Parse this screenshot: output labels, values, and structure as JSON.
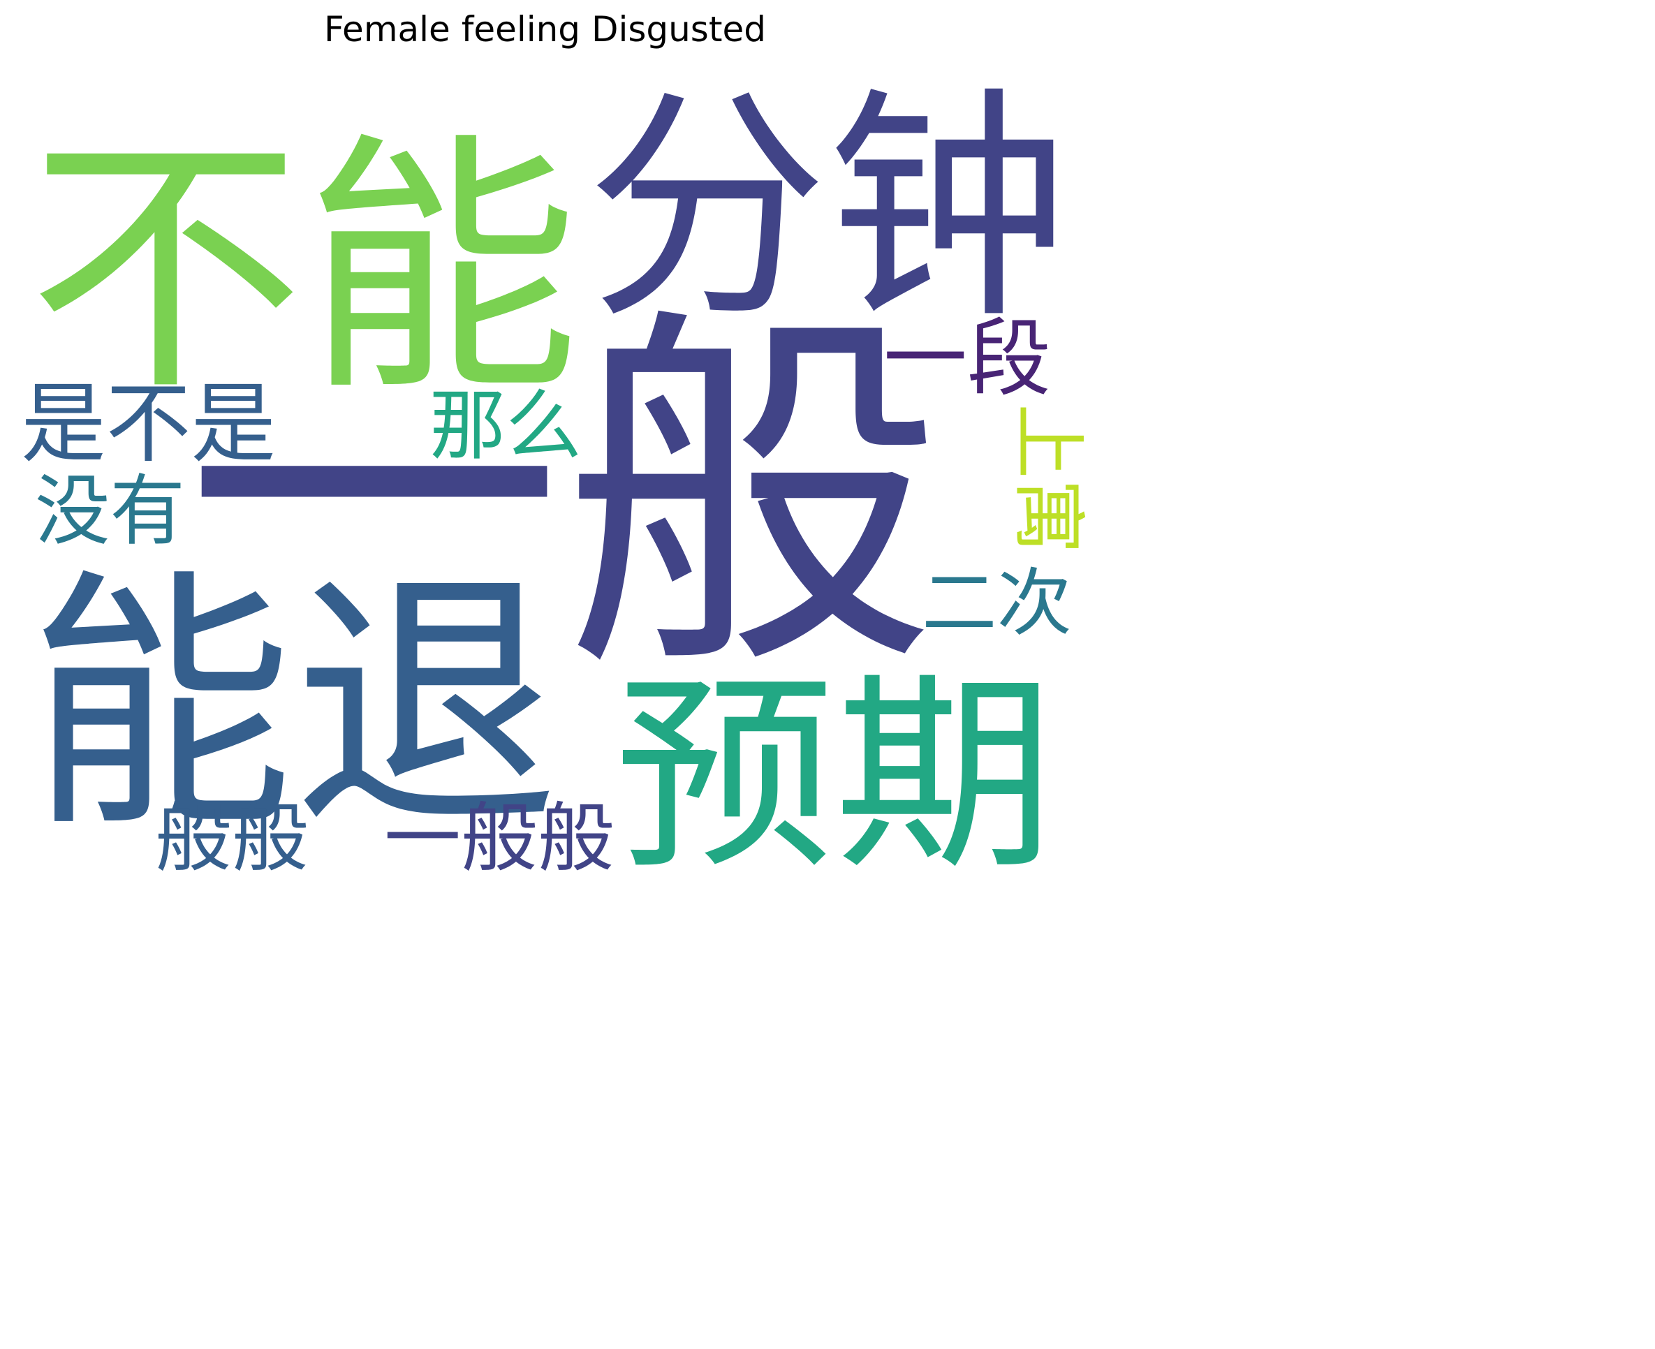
{
  "title": "Female feeling Disgusted",
  "words": [
    {
      "text": "一般",
      "color": "#414487",
      "rank": 1
    },
    {
      "text": "不能",
      "color": "#7ad151",
      "rank": 2
    },
    {
      "text": "分钟",
      "color": "#414487",
      "rank": 3
    },
    {
      "text": "能退",
      "color": "#355f8d",
      "rank": 4
    },
    {
      "text": "预期",
      "color": "#22a884",
      "rank": 5
    },
    {
      "text": "是不是",
      "color": "#355f8d",
      "rank": 6
    },
    {
      "text": "没有",
      "color": "#2a788e",
      "rank": 7
    },
    {
      "text": "那么",
      "color": "#22a884",
      "rank": 8
    },
    {
      "text": "一段",
      "color": "#482475",
      "rank": 9
    },
    {
      "text": "般般",
      "color": "#355f8d",
      "rank": 10
    },
    {
      "text": "一般般",
      "color": "#414487",
      "rank": 11
    },
    {
      "text": "二次",
      "color": "#2a788e",
      "rank": 12
    },
    {
      "text": "上寓",
      "color": "#bddf26",
      "rank": 13
    }
  ]
}
